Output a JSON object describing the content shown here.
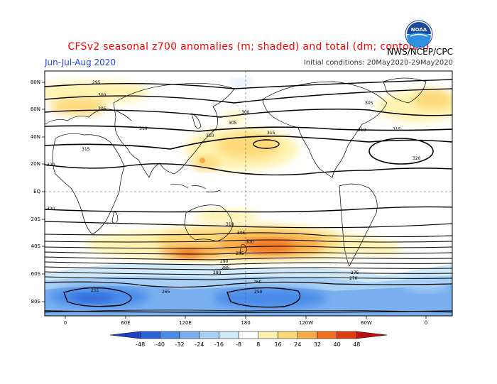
{
  "header": {
    "title": "CFSv2 seasonal z700 anomalies (m; shaded) and total (dm; contours)",
    "season": "Jun-Jul-Aug 2020",
    "initial_conditions": "Initial conditions: 20May2020-29May2020",
    "agency": "NWS/NCEP/CPC",
    "logo_text": "NOAA"
  },
  "map": {
    "lat_labels": [
      "80N",
      "60N",
      "40N",
      "20N",
      "EQ",
      "20S",
      "40S",
      "60S",
      "80S"
    ],
    "lon_labels": [
      "0",
      "60E",
      "120E",
      "180",
      "120W",
      "60W",
      "0"
    ],
    "contour_labels": [
      "295",
      "300",
      "305",
      "310",
      "315",
      "320",
      "300",
      "305",
      "310",
      "315",
      "320",
      "305",
      "310",
      "315",
      "320",
      "310",
      "305",
      "300",
      "295",
      "290",
      "285",
      "280",
      "275",
      "270",
      "265",
      "260",
      "255",
      "250"
    ]
  },
  "colorbar": {
    "labels": [
      "-48",
      "-40",
      "-32",
      "-24",
      "-16",
      "-8",
      "8",
      "16",
      "24",
      "32",
      "40",
      "48"
    ],
    "colors": [
      "#1e3fc8",
      "#2a63d8",
      "#4a8ae8",
      "#7ab0f0",
      "#a8d0f5",
      "#d0eafa",
      "#ffffff",
      "#fff3b0",
      "#fdd97a",
      "#f9ab4a",
      "#f07020",
      "#e03a10",
      "#c01010"
    ]
  }
}
